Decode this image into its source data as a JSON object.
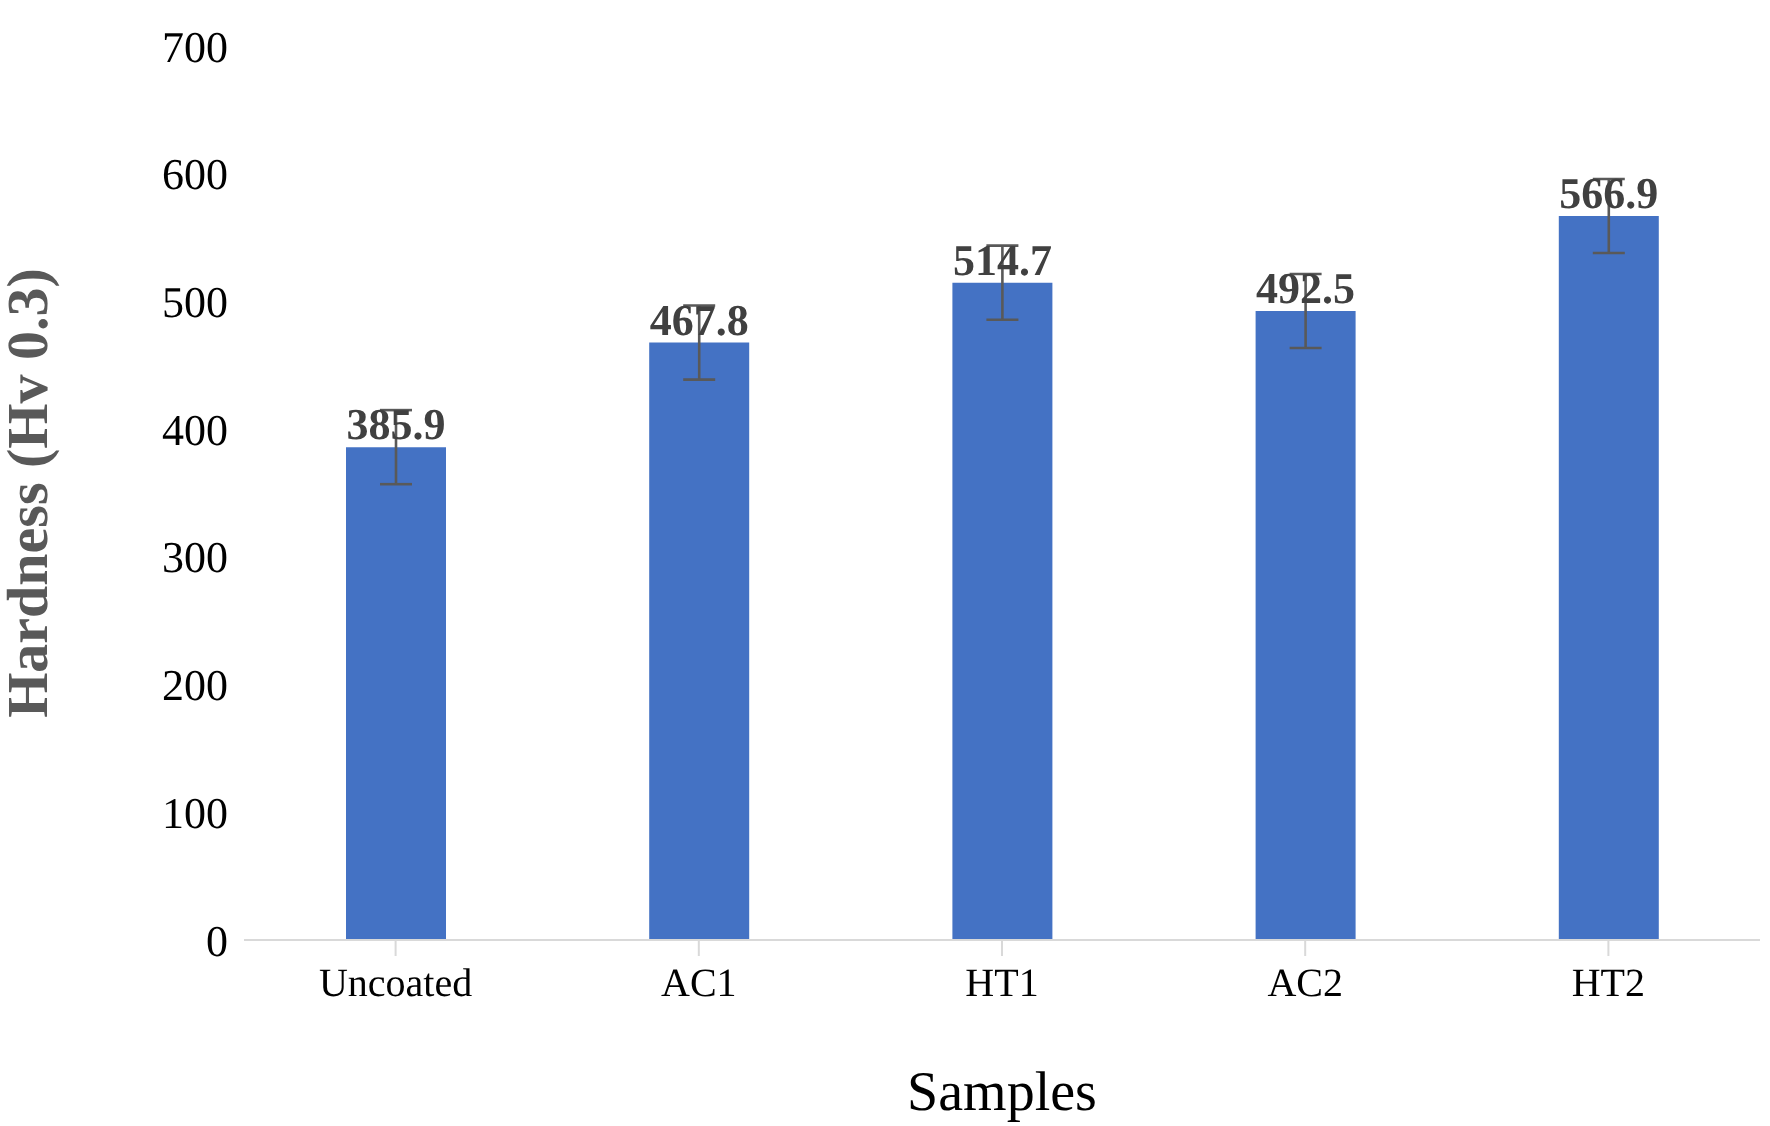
{
  "chart_data": {
    "type": "bar",
    "xlabel": "Samples",
    "ylabel": "Hardness (Hv 0.3)",
    "categories": [
      "Uncoated",
      "AC1",
      "HT1",
      "AC2",
      "HT2"
    ],
    "values": [
      385.9,
      467.8,
      514.7,
      492.5,
      566.9
    ],
    "errors": [
      29,
      29,
      29,
      29,
      29
    ],
    "color": "#4472c4",
    "ylim": [
      0,
      700
    ],
    "yticks": [
      0,
      100,
      200,
      300,
      400,
      500,
      600,
      700
    ],
    "grid": false,
    "data_labels": true
  }
}
